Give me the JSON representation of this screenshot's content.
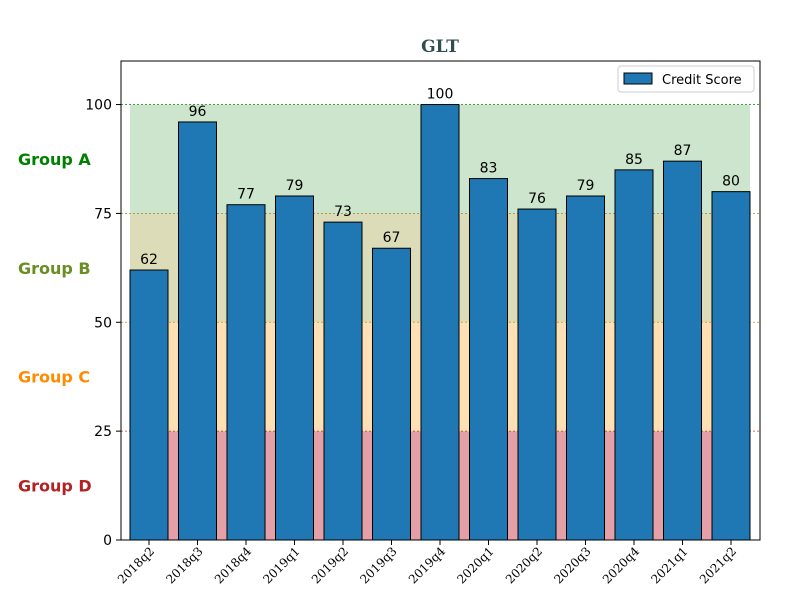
{
  "chart_data": {
    "type": "bar",
    "title": "GLT",
    "categories": [
      "2018q2",
      "2018q3",
      "2018q4",
      "2019q1",
      "2019q2",
      "2019q3",
      "2019q4",
      "2020q1",
      "2020q2",
      "2020q3",
      "2020q4",
      "2021q1",
      "2021q2"
    ],
    "series": [
      {
        "name": "Credit Score",
        "values": [
          62,
          96,
          77,
          79,
          73,
          67,
          100,
          83,
          76,
          79,
          85,
          87,
          80
        ],
        "color": "#1f77b4"
      }
    ],
    "ylim": [
      0,
      110
    ],
    "yticks": [
      0,
      25,
      50,
      75,
      100
    ],
    "xlabel": "",
    "ylabel": "",
    "legend_position": "top-right",
    "grid": false,
    "bands": [
      {
        "label": "Group D",
        "from": 0,
        "to": 25,
        "color": "#e4a0a6",
        "label_color": "#b22222",
        "line_color": "#c0392b"
      },
      {
        "label": "Group C",
        "from": 25,
        "to": 50,
        "color": "#ffe0b2",
        "label_color": "#ff8c00",
        "line_color": "#e67e22"
      },
      {
        "label": "Group B",
        "from": 50,
        "to": 75,
        "color": "#dcdcb8",
        "label_color": "#6b8e23",
        "line_color": "#8a8a2a"
      },
      {
        "label": "Group A",
        "from": 75,
        "to": 100,
        "color": "#cce5cc",
        "label_color": "#008000",
        "line_color": "#2e8b2e"
      }
    ],
    "title_color": "#2f4f4f"
  }
}
